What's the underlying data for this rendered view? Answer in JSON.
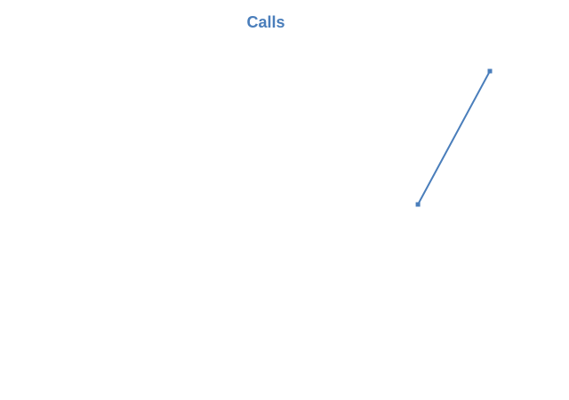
{
  "chart_data": {
    "type": "line",
    "title": "Calls",
    "xlabel": "",
    "ylabel": "",
    "x": [
      1,
      2
    ],
    "series": [
      {
        "values": [
          1,
          2.5
        ]
      }
    ],
    "xlim": [
      -4.81,
      3.1
    ],
    "ylim": [
      -1.5,
      3.0
    ],
    "grid": false,
    "axes_visible": false,
    "line_color": "#4a7ebb",
    "marker": "square"
  }
}
